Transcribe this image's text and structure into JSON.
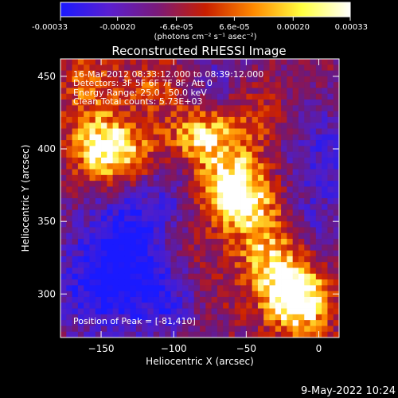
{
  "chart_data": {
    "type": "heatmap",
    "title": "Reconstructed RHESSI Image",
    "xlabel": "Heliocentric X (arcsec)",
    "ylabel": "Heliocentric Y (arcsec)",
    "xlim": [
      -178,
      14
    ],
    "ylim": [
      270,
      462
    ],
    "x_ticks": [
      -150,
      -100,
      -50,
      0
    ],
    "y_ticks": [
      300,
      350,
      400,
      450
    ],
    "colorbar": {
      "min": -0.00033,
      "max": 0.00033,
      "tick_values": [
        -0.00033,
        -0.0002,
        -6.6e-05,
        6.6e-05,
        0.0002,
        0.00033
      ],
      "tick_labels": [
        "-0.00033",
        "-0.00020",
        "-6.6e-05",
        "6.6e-05",
        "0.00020",
        "0.00033"
      ],
      "unit_label": "(photons cm⁻² s⁻¹ asec⁻²)",
      "colors": [
        "#1a1aff",
        "#5a1fd0",
        "#7a1a7a",
        "#c81e00",
        "#ff8a00",
        "#ffff40",
        "#ffffff"
      ]
    },
    "annotations": [
      "16-Mar-2012 08:33:12.000 to 08:39:12.000",
      "Detectors: 3F 5F 6F 7F 8F, Att 0",
      "Energy Range: 25.0 - 50.0 keV",
      "Clean     Total counts: 5.73E+03"
    ],
    "peak_label": "Position of Peak = [-81,410]",
    "peak_position": [
      -81,
      410
    ],
    "sources": [
      {
        "x": -62,
        "y": 368,
        "amp": 1.0
      },
      {
        "x": -150,
        "y": 402,
        "amp": 0.95
      },
      {
        "x": -82,
        "y": 410,
        "amp": 0.95
      },
      {
        "x": -128,
        "y": 392,
        "amp": 0.6
      },
      {
        "x": -20,
        "y": 305,
        "amp": 0.85
      },
      {
        "x": -35,
        "y": 330,
        "amp": 0.65
      },
      {
        "x": -12,
        "y": 290,
        "amp": 0.7
      },
      {
        "x": -40,
        "y": 360,
        "amp": 0.5
      },
      {
        "x": -110,
        "y": 445,
        "amp": 0.5
      },
      {
        "x": -160,
        "y": 445,
        "amp": 0.45
      },
      {
        "x": -45,
        "y": 425,
        "amp": 0.4
      },
      {
        "x": -95,
        "y": 330,
        "amp": 0.35
      },
      {
        "x": -75,
        "y": 300,
        "amp": 0.3
      },
      {
        "x": -55,
        "y": 395,
        "amp": 0.35
      }
    ],
    "negative_regions": [
      {
        "x": -135,
        "y": 335,
        "amp": 0.9
      },
      {
        "x": -105,
        "y": 300,
        "amp": 0.8
      },
      {
        "x": -155,
        "y": 300,
        "amp": 0.7
      },
      {
        "x": 5,
        "y": 400,
        "amp": 0.55
      },
      {
        "x": -75,
        "y": 440,
        "amp": 0.5
      },
      {
        "x": -5,
        "y": 350,
        "amp": 0.45
      },
      {
        "x": -110,
        "y": 370,
        "amp": 0.55
      }
    ]
  },
  "timestamp": "9-May-2022 10:24"
}
